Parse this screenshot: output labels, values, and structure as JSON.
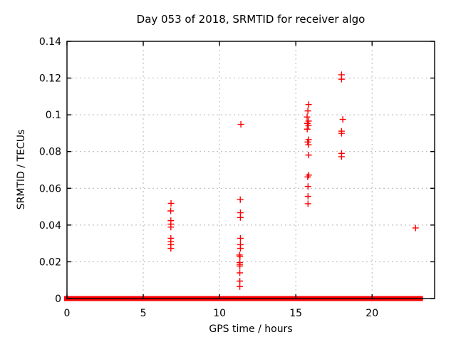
{
  "figure": {
    "title": "Day 053 of 2018, SRMTID for receiver algo",
    "xlabel": "GPS time / hours",
    "ylabel": "SRMTID / TECUs"
  },
  "colors": {
    "marker": "#ff0000",
    "grid": "#b4b4b4",
    "axis": "#000000",
    "background": "#ffffff",
    "text": "#000000"
  },
  "chart_data": {
    "type": "scatter",
    "title": "Day 053 of 2018, SRMTID for receiver algo",
    "xlabel": "GPS time / hours",
    "ylabel": "SRMTID / TECUs",
    "xlim": [
      0,
      24.1
    ],
    "ylim": [
      0,
      0.14
    ],
    "xticks": [
      0,
      5,
      10,
      15,
      20
    ],
    "xtick_labels": [
      "0",
      "5",
      "10",
      "15",
      "20"
    ],
    "yticks": [
      0,
      0.02,
      0.04,
      0.06,
      0.08,
      0.1,
      0.12,
      0.14
    ],
    "ytick_labels": [
      "0",
      "0.02",
      "0.04",
      "0.06",
      "0.08",
      "0.1",
      "0.12",
      "0.14"
    ],
    "grid": true,
    "legend": "none",
    "marker": "plus",
    "series_name": "SRMTID",
    "points": [
      [
        6.82,
        0.0518
      ],
      [
        6.8,
        0.0477
      ],
      [
        6.81,
        0.0424
      ],
      [
        6.81,
        0.0405
      ],
      [
        6.81,
        0.0389
      ],
      [
        6.81,
        0.0328
      ],
      [
        6.81,
        0.0309
      ],
      [
        6.81,
        0.0293
      ],
      [
        6.81,
        0.0273
      ],
      [
        11.4,
        0.0948
      ],
      [
        11.36,
        0.0538
      ],
      [
        11.37,
        0.0467
      ],
      [
        11.37,
        0.0441
      ],
      [
        11.37,
        0.0328
      ],
      [
        11.37,
        0.0293
      ],
      [
        11.37,
        0.0273
      ],
      [
        11.31,
        0.0237
      ],
      [
        11.34,
        0.0228
      ],
      [
        11.33,
        0.0196
      ],
      [
        11.33,
        0.0186
      ],
      [
        11.33,
        0.0177
      ],
      [
        11.33,
        0.014
      ],
      [
        11.33,
        0.0095
      ],
      [
        11.33,
        0.0065
      ],
      [
        15.84,
        0.1056
      ],
      [
        15.79,
        0.1021
      ],
      [
        15.74,
        0.0988
      ],
      [
        15.84,
        0.0966
      ],
      [
        15.76,
        0.0953
      ],
      [
        15.83,
        0.0942
      ],
      [
        15.75,
        0.0922
      ],
      [
        15.84,
        0.0865
      ],
      [
        15.78,
        0.0852
      ],
      [
        15.83,
        0.0837
      ],
      [
        15.84,
        0.0781
      ],
      [
        15.85,
        0.0672
      ],
      [
        15.78,
        0.0662
      ],
      [
        15.8,
        0.061
      ],
      [
        15.8,
        0.0556
      ],
      [
        15.8,
        0.0516
      ],
      [
        18.0,
        0.1218
      ],
      [
        18.0,
        0.1194
      ],
      [
        18.08,
        0.0975
      ],
      [
        18.0,
        0.0911
      ],
      [
        18.0,
        0.0899
      ],
      [
        18.0,
        0.079
      ],
      [
        18.0,
        0.0772
      ],
      [
        22.85,
        0.0384
      ]
    ],
    "baseline_y": 0,
    "baseline_segments": [
      [
        0.0,
        0.26
      ],
      [
        0.42,
        0.66
      ],
      [
        0.8,
        4.3
      ],
      [
        4.47,
        5.68
      ],
      [
        5.84,
        6.18
      ],
      [
        6.33,
        6.88
      ],
      [
        7.0,
        8.66
      ],
      [
        8.74,
        9.36
      ],
      [
        9.44,
        9.98
      ],
      [
        10.08,
        10.64
      ],
      [
        10.72,
        11.82
      ],
      [
        11.9,
        12.35
      ],
      [
        12.43,
        13.1
      ],
      [
        13.18,
        13.33
      ],
      [
        13.41,
        13.76
      ],
      [
        13.84,
        13.96
      ],
      [
        14.04,
        14.19
      ],
      [
        14.27,
        14.42
      ],
      [
        14.5,
        14.63
      ],
      [
        14.71,
        15.06
      ],
      [
        15.33,
        15.75
      ],
      [
        15.83,
        16.48
      ],
      [
        16.55,
        16.73
      ],
      [
        16.8,
        16.95
      ],
      [
        17.02,
        17.2
      ],
      [
        17.27,
        18.12
      ],
      [
        18.19,
        18.51
      ],
      [
        18.58,
        18.66
      ],
      [
        18.73,
        18.91
      ],
      [
        18.98,
        21.0
      ],
      [
        21.07,
        21.45
      ],
      [
        21.52,
        22.43
      ],
      [
        22.5,
        22.84
      ],
      [
        22.91,
        23.15
      ]
    ]
  }
}
